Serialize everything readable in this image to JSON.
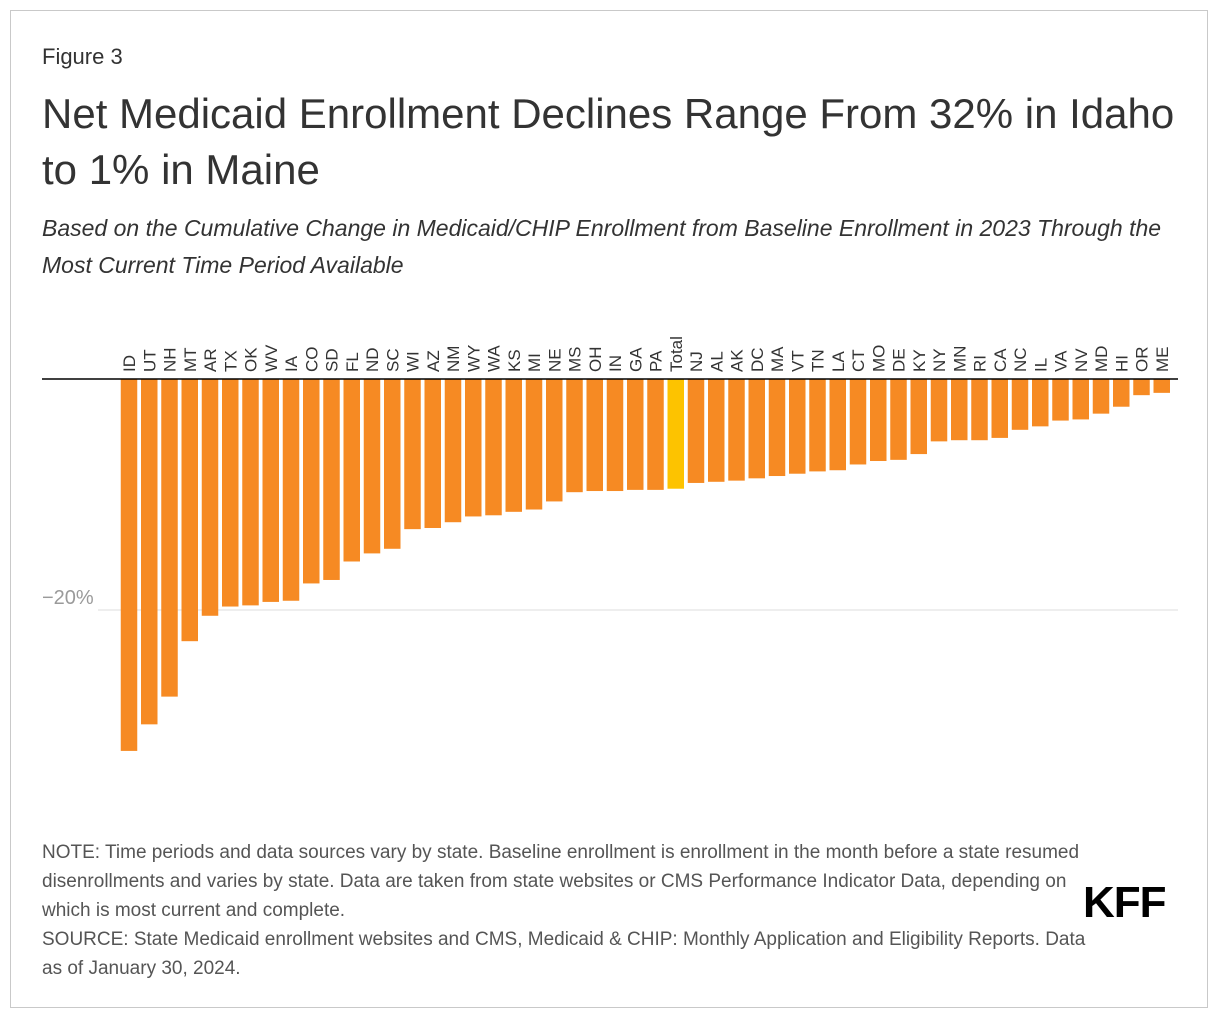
{
  "figure_label": "Figure 3",
  "title": "Net Medicaid Enrollment Declines Range From 32% in Idaho to 1% in Maine",
  "subtitle": "Based on the Cumulative Change in Medicaid/CHIP Enrollment from Baseline Enrollment in 2023 Through the Most Current Time Period Available",
  "note": "NOTE: Time periods and data sources vary by state. Baseline enrollment is enrollment in the month before a state resumed disenrollments and varies by state. Data are taken from state websites or CMS Performance Indicator Data, depending on which is most current and complete.",
  "source": "SOURCE: State Medicaid enrollment websites and CMS, Medicaid & CHIP: Monthly Application and Eligibility Reports. Data as of January 30, 2024.",
  "logo": "KFF",
  "colors": {
    "bar": "#f68a23",
    "total": "#fdc300",
    "axis": "#000000",
    "grid": "#dcdcdc",
    "tick": "#9a9a9a"
  },
  "chart_data": {
    "type": "bar",
    "categories": [
      "ID",
      "UT",
      "NH",
      "MT",
      "AR",
      "TX",
      "OK",
      "WV",
      "IA",
      "CO",
      "SD",
      "FL",
      "ND",
      "SC",
      "WI",
      "AZ",
      "NM",
      "WY",
      "WA",
      "KS",
      "MI",
      "NE",
      "MS",
      "OH",
      "IN",
      "GA",
      "PA",
      "Total",
      "NJ",
      "AL",
      "AK",
      "DC",
      "MA",
      "VT",
      "TN",
      "LA",
      "CT",
      "MO",
      "DE",
      "KY",
      "NY",
      "MN",
      "RI",
      "CA",
      "NC",
      "IL",
      "VA",
      "NV",
      "MD",
      "HI",
      "OR",
      "ME"
    ],
    "values": [
      -32.2,
      -29.9,
      -27.5,
      -22.7,
      -20.5,
      -19.7,
      -19.6,
      -19.3,
      -19.2,
      -17.7,
      -17.4,
      -15.8,
      -15.1,
      -14.7,
      -13.0,
      -12.9,
      -12.4,
      -11.9,
      -11.8,
      -11.5,
      -11.3,
      -10.6,
      -9.8,
      -9.7,
      -9.7,
      -9.6,
      -9.6,
      -9.5,
      -9.0,
      -8.9,
      -8.8,
      -8.6,
      -8.4,
      -8.2,
      -8.0,
      -7.9,
      -7.4,
      -7.1,
      -7.0,
      -6.5,
      -5.4,
      -5.3,
      -5.3,
      -5.1,
      -4.4,
      -4.1,
      -3.6,
      -3.5,
      -3.0,
      -2.4,
      -1.4,
      -1.2
    ],
    "highlight": "Total",
    "ylim": [
      -34,
      0
    ],
    "yticks": [
      -20
    ],
    "ytick_labels": [
      "−20%"
    ],
    "grid": true
  }
}
